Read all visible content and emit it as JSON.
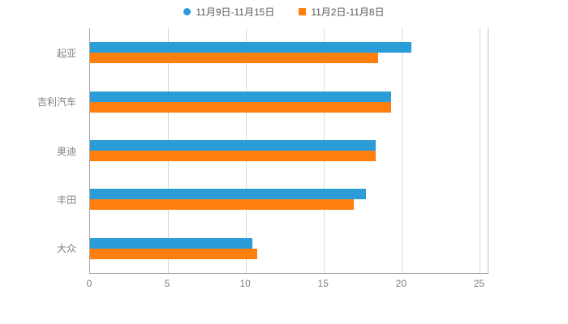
{
  "legend": [
    {
      "label": "11月9日-11月15日",
      "color": "#2a9cd7",
      "marker": "circle"
    },
    {
      "label": "11月2日-11月8日",
      "color": "#ff7f0e",
      "marker": "square"
    }
  ],
  "chart_data": {
    "type": "bar",
    "orientation": "horizontal",
    "title": "",
    "xlabel": "",
    "ylabel": "",
    "categories": [
      "起亚",
      "吉利汽车",
      "奥迪",
      "丰田",
      "大众"
    ],
    "series": [
      {
        "name": "11月9日-11月15日",
        "color": "#2a9cd7",
        "values": [
          20.6,
          19.3,
          18.3,
          17.7,
          10.4
        ]
      },
      {
        "name": "11月2日-11月8日",
        "color": "#ff7f0e",
        "values": [
          18.5,
          19.3,
          18.3,
          16.9,
          10.7
        ]
      }
    ],
    "xlim": [
      0,
      25.5
    ],
    "xticks": [
      0,
      5,
      10,
      15,
      20,
      25
    ],
    "grid": true,
    "legend_position": "top"
  }
}
